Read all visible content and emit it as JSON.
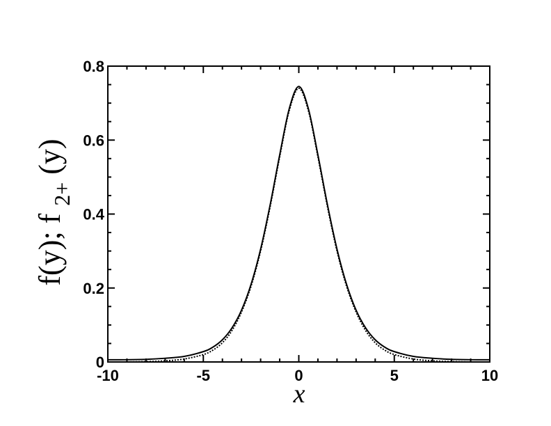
{
  "chart_data": {
    "type": "line",
    "title": "",
    "xlabel": "x",
    "ylabel": {
      "main": "f(y);  f",
      "sub": "2+",
      "tail": "(y)"
    },
    "xlim": [
      -10,
      10
    ],
    "ylim": [
      0,
      0.8
    ],
    "x_ticks": [
      -10,
      -5,
      0,
      5,
      10
    ],
    "x_tick_labels": [
      "-10",
      "-5",
      "0",
      "5",
      "10"
    ],
    "y_ticks": [
      0,
      0.2,
      0.4,
      0.6,
      0.8
    ],
    "y_tick_labels": [
      "0",
      "0.2",
      "0.4",
      "0.6",
      "0.8"
    ],
    "grid": false,
    "legend": "none",
    "series": [
      {
        "style": "solid",
        "color": "#000000",
        "x": [
          -10,
          -9,
          -8,
          -7,
          -6,
          -5,
          -4.5,
          -4,
          -3.5,
          -3,
          -2.5,
          -2,
          -1.5,
          -1,
          -0.5,
          0,
          0.5,
          1,
          1.5,
          2,
          2.5,
          3,
          3.5,
          4,
          4.5,
          5,
          6,
          7,
          8,
          9,
          10
        ],
        "y": [
          0.006,
          0.006,
          0.007,
          0.01,
          0.015,
          0.028,
          0.04,
          0.06,
          0.092,
          0.14,
          0.21,
          0.305,
          0.425,
          0.56,
          0.685,
          0.745,
          0.685,
          0.56,
          0.425,
          0.305,
          0.21,
          0.14,
          0.092,
          0.06,
          0.04,
          0.028,
          0.015,
          0.01,
          0.007,
          0.006,
          0.006
        ]
      },
      {
        "style": "dotted",
        "color": "#000000",
        "x": [
          -10,
          -9,
          -8,
          -7,
          -6,
          -5,
          -4.5,
          -4,
          -3.5,
          -3,
          -2.5,
          -2,
          -1.5,
          -1,
          -0.5,
          0,
          0.5,
          1,
          1.5,
          2,
          2.5,
          3,
          3.5,
          4,
          4.5,
          5,
          6,
          7,
          8,
          9,
          10
        ],
        "y": [
          0.0,
          0.0,
          0.001,
          0.003,
          0.008,
          0.02,
          0.032,
          0.052,
          0.085,
          0.135,
          0.205,
          0.3,
          0.42,
          0.555,
          0.68,
          0.74,
          0.68,
          0.555,
          0.42,
          0.3,
          0.205,
          0.135,
          0.085,
          0.052,
          0.032,
          0.02,
          0.008,
          0.003,
          0.001,
          0.0,
          0.0
        ]
      }
    ]
  }
}
